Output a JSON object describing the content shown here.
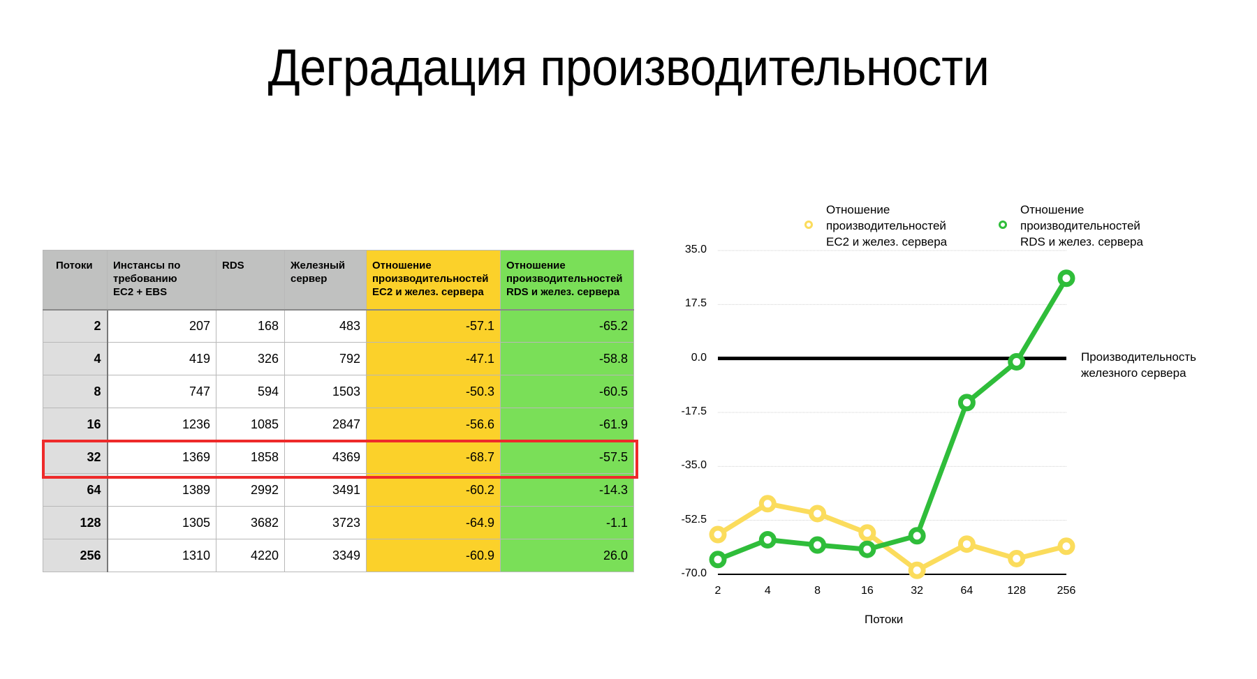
{
  "slide": {
    "title": "Деградация производительности"
  },
  "table": {
    "headers": [
      "Потоки",
      "Инстансы по требованию EC2 + EBS",
      "RDS",
      "Железный сервер",
      "Отношение производительностей EC2 и желез. сервера",
      "Отношение производительностей RDS и желез. сервера"
    ],
    "header_lines": [
      [
        "Потоки"
      ],
      [
        "Инстансы по",
        "требованию",
        "EC2 + EBS"
      ],
      [
        "RDS"
      ],
      [
        "Железный",
        "сервер"
      ],
      [
        "Отношение",
        "производительностей",
        "EC2 и желез. сервера"
      ],
      [
        "Отношение",
        "производительностей",
        "RDS и желез. сервера"
      ]
    ],
    "rows": [
      [
        "2",
        "207",
        "168",
        "483",
        "-57.1",
        "-65.2"
      ],
      [
        "4",
        "419",
        "326",
        "792",
        "-47.1",
        "-58.8"
      ],
      [
        "8",
        "747",
        "594",
        "1503",
        "-50.3",
        "-60.5"
      ],
      [
        "16",
        "1236",
        "1085",
        "2847",
        "-56.6",
        "-61.9"
      ],
      [
        "32",
        "1369",
        "1858",
        "4369",
        "-68.7",
        "-57.5"
      ],
      [
        "64",
        "1389",
        "2992",
        "3491",
        "-60.2",
        "-14.3"
      ],
      [
        "128",
        "1305",
        "3682",
        "3723",
        "-64.9",
        "-1.1"
      ],
      [
        "256",
        "1310",
        "4220",
        "3349",
        "-60.9",
        "26.0"
      ]
    ],
    "highlighted_row_index": 4,
    "colors": {
      "header_gray": "#c0c1c0",
      "first_col_gray": "#dedede",
      "ec2_ratio_yellow": "#fbd12a",
      "rds_ratio_green": "#7adf58",
      "highlight_red": "#ee2a2a"
    }
  },
  "chart_data": {
    "type": "line",
    "title": "",
    "xlabel": "Потоки",
    "ylabel": "",
    "categories": [
      "2",
      "4",
      "8",
      "16",
      "32",
      "64",
      "128",
      "256"
    ],
    "series": [
      {
        "name": "Отношение производительностей EC2 и желез. сервера",
        "legend_lines": [
          "Отношение",
          "производительностей",
          "EC2 и желез. сервера"
        ],
        "color": "#fbdc5c",
        "values": [
          -57.1,
          -47.1,
          -50.3,
          -56.6,
          -68.7,
          -60.2,
          -64.9,
          -60.9
        ]
      },
      {
        "name": "Отношение производительностей RDS и желез. сервера",
        "legend_lines": [
          "Отношение",
          "производительностей",
          "RDS и желез. сервера"
        ],
        "color": "#2fbd3a",
        "values": [
          -65.2,
          -58.8,
          -60.5,
          -61.9,
          -57.5,
          -14.3,
          -1.1,
          26.0
        ]
      }
    ],
    "yticks": [
      "35.0",
      "17.5",
      "0.0",
      "-17.5",
      "-35.0",
      "-52.5",
      "-70.0"
    ],
    "ylim": [
      -70,
      35
    ],
    "grid": true,
    "legend_position": "top",
    "reference_line": {
      "value": 0,
      "color": "#000000",
      "label_lines": [
        "Производительность",
        "железного сервера"
      ]
    }
  }
}
